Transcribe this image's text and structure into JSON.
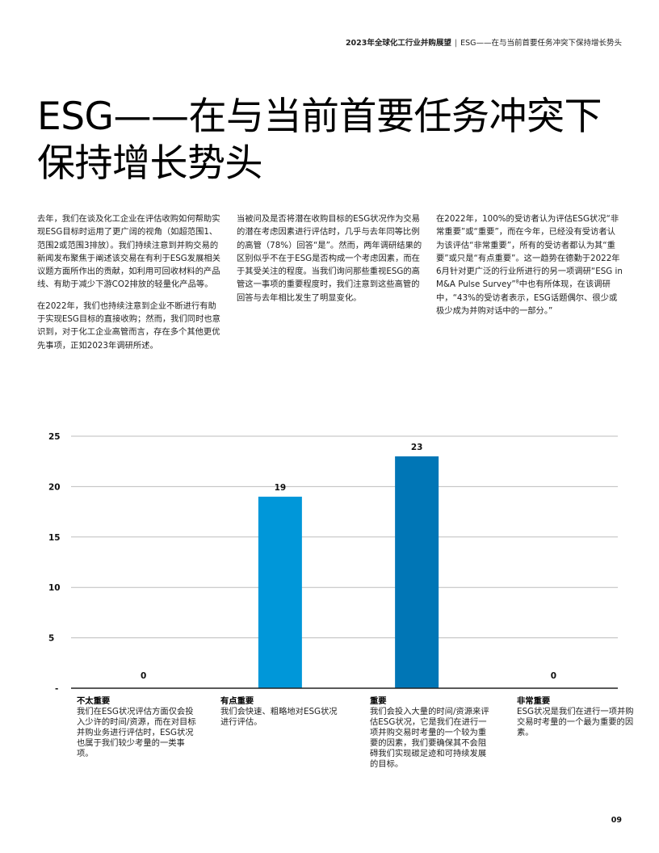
{
  "header": {
    "report": "2023年全球化工行业并购展望",
    "section": "ESG——在与当前首要任务冲突下保持增长势头"
  },
  "title": "ESG——在与当前首要任务冲突下保持增长势头",
  "body": {
    "col1": [
      "去年，我们在谈及化工企业在评估收购如何帮助实现ESG目标时运用了更广阔的视角（如超范围1、范围2或范围3排放）。我们持续注意到并购交易的新闻发布聚焦于阐述该交易在有利于ESG发展相关议题方面所作出的贡献，如利用可回收材料的产品线、有助于减少下游CO2排放的轻量化产品等。",
      "在2022年，我们也持续注意到企业不断进行有助于实现ESG目标的直接收购；然而，我们同时也意识到，对于化工企业高管而言，存在多个其他更优先事项，正如2023年调研所述。"
    ],
    "col2": [
      "当被问及是否将潜在收购目标的ESG状况作为交易的潜在考虑因素进行评估时，几乎与去年同等比例的高管（78%）回答“是”。然而，两年调研结果的区别似乎不在于ESG是否构成一个考虑因素，而在于其受关注的程度。当我们询问那些重视ESG的高管这一事项的重要程度时，我们注意到这些高管的回答与去年相比发生了明显变化。"
    ],
    "col3_text": "在2022年，100%的受访者认为评估ESG状况“非常重要”或“重要”，而在今年，已经没有受访者认为该评估“非常重要”，所有的受访者都认为其“重要”或只是“有点重要”。这一趋势在德勤于2022年6月针对更广泛的行业所进行的另一项调研“ESG in M&A Pulse Survey”",
    "col3_sup": "8",
    "col3_tail": "中也有所体现，在该调研中，“43%的受访者表示，ESG话题偶尔、很少或极少成为并购对话中的一部分。”"
  },
  "chart_data": {
    "type": "bar",
    "categories": [
      "不太重要",
      "有点重要",
      "重要",
      "非常重要"
    ],
    "values": [
      0,
      19,
      23,
      0
    ],
    "data_labels": [
      "0",
      "19",
      "23",
      "0"
    ],
    "yticks": [
      25,
      20,
      15,
      10,
      5
    ],
    "ytick_zero_label": "-",
    "ylim": [
      0,
      25
    ],
    "grid": true,
    "colors": [
      "#0097d9",
      "#0097d9",
      "#0076b6",
      "#0097d9"
    ],
    "descriptions": [
      "我们在ESG状况评估方面仅会投入少许的时间/资源，而在对目标并购业务进行评估时，ESG状况也属于我们较少考量的一类事项。",
      "我们会快速、粗略地对ESG状况进行评估。",
      "我们会投入大量的时间/资源来评估ESG状况，它是我们在进行一项并购交易时考量的一个较为重要的因素，我们要确保其不会阻碍我们实现碳足迹和可持续发展的目标。",
      "ESG状况是我们在进行一项并购交易时考量的一个最为重要的因素。"
    ]
  },
  "page_number": "09"
}
